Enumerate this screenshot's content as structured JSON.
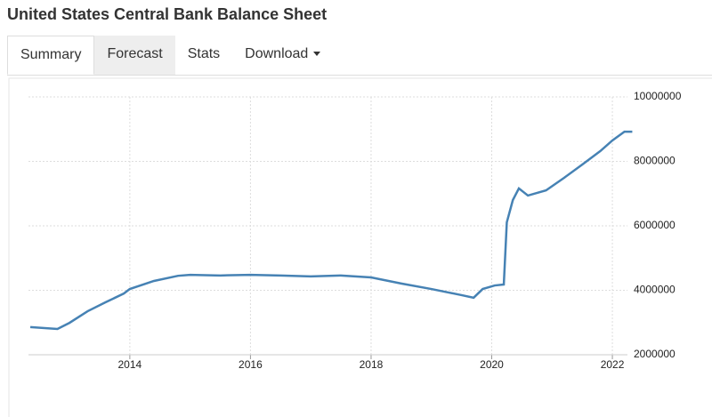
{
  "header": {
    "title": "United States Central Bank Balance Sheet"
  },
  "tabs": [
    "Summary",
    "Forecast",
    "Stats",
    "Download"
  ],
  "chart_data": {
    "type": "line",
    "x": [
      2012.35,
      2012.8,
      2013.0,
      2013.3,
      2013.6,
      2013.9,
      2014.0,
      2014.4,
      2014.8,
      2015.0,
      2015.5,
      2016.0,
      2016.5,
      2017.0,
      2017.5,
      2018.0,
      2018.5,
      2019.0,
      2019.5,
      2019.7,
      2019.85,
      2020.05,
      2020.2,
      2020.25,
      2020.35,
      2020.45,
      2020.6,
      2020.9,
      2021.2,
      2021.5,
      2021.8,
      2022.0,
      2022.2,
      2022.33
    ],
    "series": [
      {
        "color": "#4682b4",
        "values": [
          2860000,
          2800000,
          2990000,
          3350000,
          3630000,
          3900000,
          4040000,
          4290000,
          4450000,
          4480000,
          4460000,
          4480000,
          4460000,
          4430000,
          4460000,
          4400000,
          4210000,
          4040000,
          3850000,
          3770000,
          4040000,
          4150000,
          4180000,
          6110000,
          6800000,
          7160000,
          6940000,
          7100000,
          7490000,
          7900000,
          8320000,
          8650000,
          8920000,
          8920000
        ]
      }
    ],
    "xlim": [
      2012.32,
      2022.25
    ],
    "xticks": [
      2014,
      2016,
      2018,
      2020,
      2022
    ],
    "ylim": [
      2000000,
      10000000
    ],
    "yticks": [
      2000000,
      4000000,
      6000000,
      8000000,
      10000000
    ],
    "grid": true
  }
}
